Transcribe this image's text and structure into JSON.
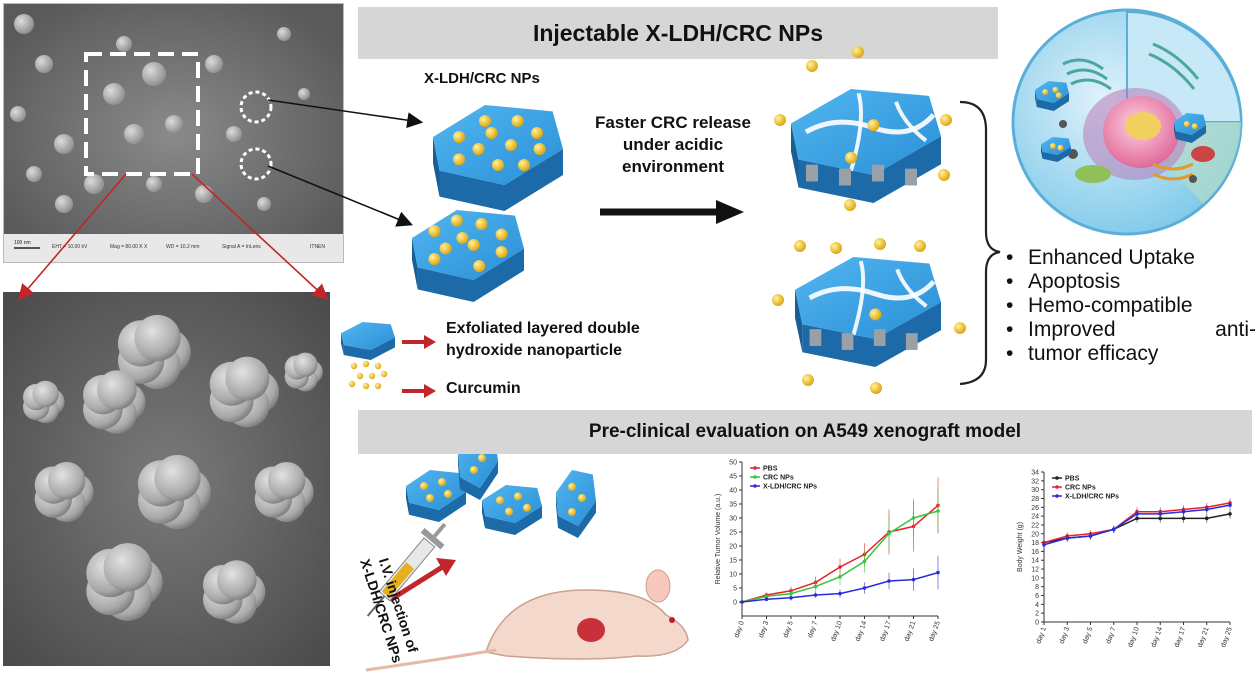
{
  "header": {
    "title": "Injectable X-LDH/CRC NPs"
  },
  "sem_top": {
    "scalebar": "100 nm",
    "info": [
      "EHT = 10.00 kV",
      "Mag = 80.00 K X",
      "WD = 10.2 mm",
      "Signal A = InLens",
      "ITNEN"
    ]
  },
  "nps_label": "X-LDH/CRC NPs",
  "release_label": [
    "Faster CRC release",
    "under acidic",
    "environment"
  ],
  "legend": {
    "ldh": [
      "Exfoliated layered double",
      "hydroxide nanoparticle"
    ],
    "curcumin": "Curcumin"
  },
  "outcomes": [
    "Enhanced Uptake",
    "Apoptosis",
    "Hemo-compatible",
    "Improved anti-",
    "tumor efficacy"
  ],
  "preclinical_title": "Pre-clinical evaluation on A549  xenograft model",
  "injection_label": [
    "I.V. injection of",
    "X-LDH/CRC NPs"
  ],
  "colors": {
    "pbs": "#e8202a",
    "crc": "#3cc43c",
    "xldh": "#2b2bd8",
    "body_pbs": "#222222",
    "banner": "#d6d6d6",
    "ldh_blue": "#2a8fd6",
    "curcumin": "#f0c020"
  },
  "chart_data": [
    {
      "type": "line",
      "ylabel": "Relative Tumor Volume (a.u.)",
      "xlabel": "",
      "categories": [
        "day 0",
        "day 3",
        "day 5",
        "day 7",
        "day 10",
        "day 14",
        "day 17",
        "day 21",
        "day 25"
      ],
      "ylim": [
        -5,
        50
      ],
      "yticks": [
        0,
        5,
        10,
        15,
        20,
        25,
        30,
        35,
        40,
        45,
        50
      ],
      "legend_position": "top-left",
      "series": [
        {
          "name": "PBS",
          "color": "#e8202a",
          "values": [
            0,
            2.5,
            4,
            7,
            12.5,
            17,
            25,
            27,
            34.5
          ],
          "errors": [
            0,
            1,
            1.5,
            2,
            3,
            4,
            8,
            9,
            10
          ]
        },
        {
          "name": "CRC NPs",
          "color": "#3cc43c",
          "values": [
            0,
            2,
            3,
            5.5,
            9,
            14.5,
            24.5,
            30,
            32.5
          ],
          "errors": [
            0,
            1,
            1.5,
            2,
            3,
            4,
            6,
            7,
            8
          ]
        },
        {
          "name": "X-LDH/CRC NPs",
          "color": "#2b2bd8",
          "values": [
            0,
            1,
            1.5,
            2.5,
            3,
            5,
            7.5,
            8,
            10.5
          ],
          "errors": [
            0,
            0.5,
            1,
            1,
            1.5,
            2,
            3,
            4,
            6
          ]
        }
      ]
    },
    {
      "type": "line",
      "ylabel": "Body Weight (g)",
      "xlabel": "",
      "categories": [
        "day 1",
        "day 3",
        "day 5",
        "day 7",
        "day 10",
        "day 14",
        "day 17",
        "day 21",
        "day 25"
      ],
      "ylim": [
        0,
        34
      ],
      "yticks": [
        0,
        2,
        4,
        6,
        8,
        10,
        12,
        14,
        16,
        18,
        20,
        22,
        24,
        26,
        28,
        30,
        32,
        34
      ],
      "legend_position": "top-left",
      "series": [
        {
          "name": "PBS",
          "color": "#222222",
          "values": [
            18,
            19,
            19.5,
            21,
            23.5,
            23.5,
            23.5,
            23.5,
            24.5
          ],
          "errors": [
            0.8,
            0.8,
            0.8,
            0.8,
            1.0,
            1.0,
            1.0,
            1.0,
            1.0
          ]
        },
        {
          "name": "CRC NPs",
          "color": "#e8202a",
          "values": [
            18,
            19.5,
            20,
            21,
            25,
            25,
            25.5,
            26,
            27
          ],
          "errors": [
            0.8,
            0.8,
            0.8,
            0.8,
            1.0,
            1.0,
            1.0,
            1.0,
            1.0
          ]
        },
        {
          "name": "X-LDH/CRC NPs",
          "color": "#2b2bd8",
          "values": [
            17.5,
            19,
            19.5,
            21,
            24.5,
            24.5,
            25,
            25.5,
            26.5
          ],
          "errors": [
            0.8,
            0.8,
            0.8,
            0.8,
            1.0,
            1.0,
            1.0,
            1.0,
            1.0
          ]
        }
      ]
    }
  ]
}
